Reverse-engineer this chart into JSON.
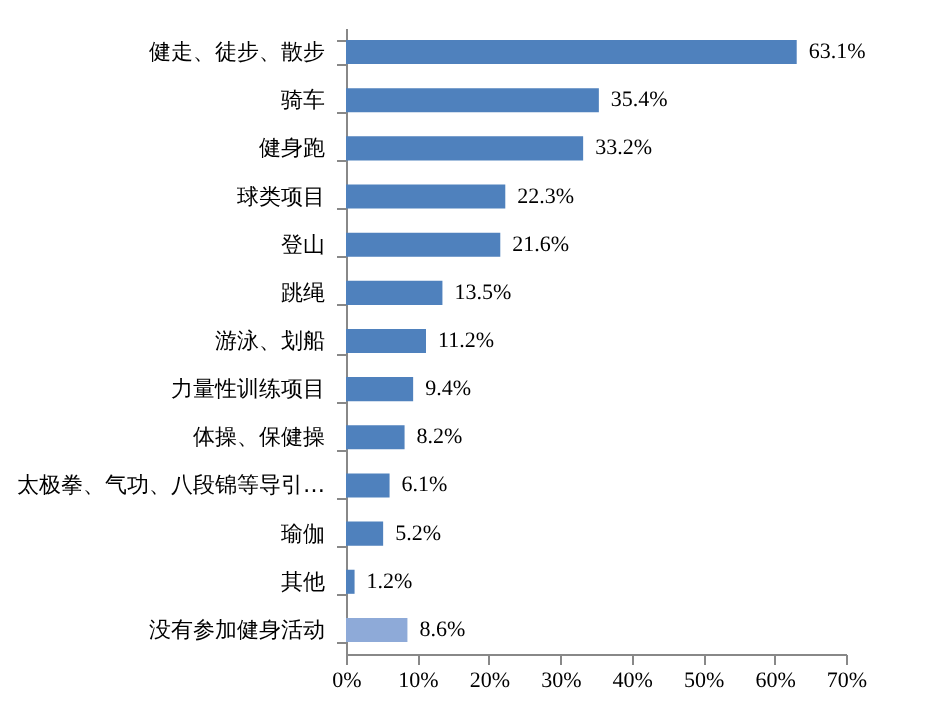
{
  "chart_data": {
    "type": "bar",
    "orientation": "horizontal",
    "categories": [
      "健走、徒步、散步",
      "骑车",
      "健身跑",
      "球类项目",
      "登山",
      "跳绳",
      "游泳、划船",
      "力量性训练项目",
      "体操、保健操",
      "太极拳、气功、八段锦等导引…",
      "瑜伽",
      "其他",
      "没有参加健身活动"
    ],
    "values": [
      63.1,
      35.4,
      33.2,
      22.3,
      21.6,
      13.5,
      11.2,
      9.4,
      8.2,
      6.1,
      5.2,
      1.2,
      8.6
    ],
    "value_labels": [
      "63.1%",
      "35.4%",
      "33.2%",
      "22.3%",
      "21.6%",
      "13.5%",
      "11.2%",
      "9.4%",
      "8.2%",
      "6.1%",
      "5.2%",
      "1.2%",
      "8.6%"
    ],
    "colors": [
      "#4f81bd",
      "#4f81bd",
      "#4f81bd",
      "#4f81bd",
      "#4f81bd",
      "#4f81bd",
      "#4f81bd",
      "#4f81bd",
      "#4f81bd",
      "#4f81bd",
      "#4f81bd",
      "#4f81bd",
      "#8eaad8"
    ],
    "xlim": [
      0,
      70
    ],
    "xticks": [
      {
        "value": 0,
        "label": "0%"
      },
      {
        "value": 10,
        "label": "10%"
      },
      {
        "value": 20,
        "label": "20%"
      },
      {
        "value": 30,
        "label": "30%"
      },
      {
        "value": 40,
        "label": "40%"
      },
      {
        "value": 50,
        "label": "50%"
      },
      {
        "value": 60,
        "label": "60%"
      },
      {
        "value": 70,
        "label": "70%"
      }
    ],
    "grid": false
  }
}
